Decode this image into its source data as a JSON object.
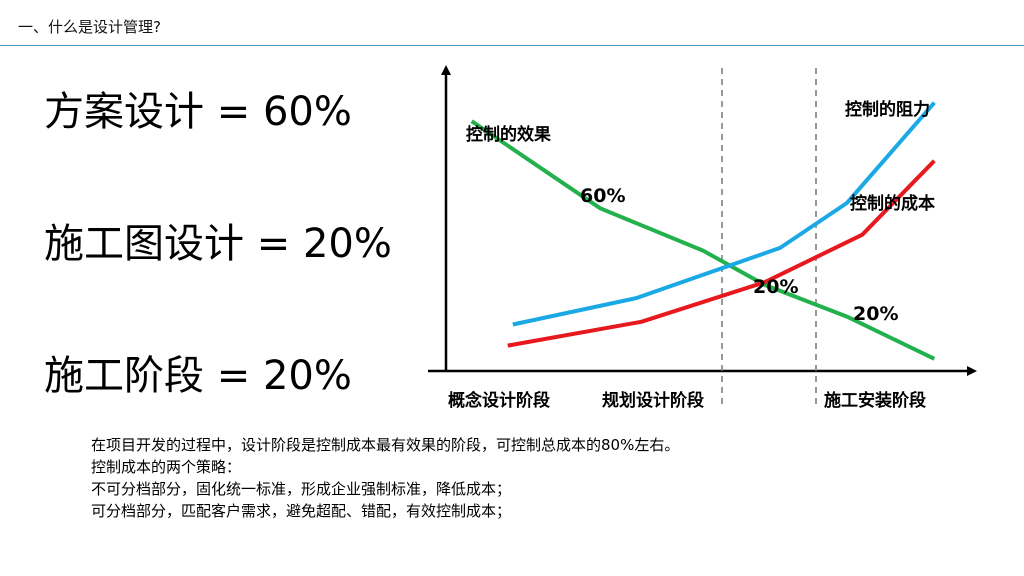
{
  "header": {
    "title": "一、什么是设计管理?"
  },
  "ratios": [
    {
      "text": "方案设计 = 60%"
    },
    {
      "text": "施工图设计 = 20%"
    },
    {
      "text": "施工阶段 = 20%"
    }
  ],
  "chart_data": {
    "type": "line",
    "xlabel": "",
    "ylabel": "",
    "x_categories": [
      "概念设计阶段",
      "规划设计阶段",
      "施工安装阶段"
    ],
    "phase_dividers": 2,
    "series": [
      {
        "name": "控制的效果",
        "color": "#22b14c",
        "points": [
          [
            0.05,
            95
          ],
          [
            0.3,
            62
          ],
          [
            0.5,
            46
          ],
          [
            0.62,
            33
          ],
          [
            0.78,
            21
          ],
          [
            0.95,
            5
          ]
        ]
      },
      {
        "name": "控制的阻力",
        "color": "#1ba9e6",
        "points": [
          [
            0.13,
            18
          ],
          [
            0.37,
            28
          ],
          [
            0.65,
            47
          ],
          [
            0.78,
            64
          ],
          [
            0.95,
            102
          ]
        ]
      },
      {
        "name": "控制的成本",
        "color": "#e8191e",
        "points": [
          [
            0.12,
            10
          ],
          [
            0.38,
            19
          ],
          [
            0.62,
            34
          ],
          [
            0.81,
            52
          ],
          [
            0.95,
            80
          ]
        ]
      }
    ],
    "annotations": [
      "60%",
      "20%",
      "20%"
    ]
  },
  "body": {
    "lines": [
      "在项目开发的过程中，设计阶段是控制成本最有效果的阶段，可控制总成本的80%左右。",
      "控制成本的两个策略：",
      "不可分档部分，固化统一标准，形成企业强制标准，降低成本；",
      "可分档部分，匹配客户需求，避免超配、错配，有效控制成本；"
    ]
  }
}
